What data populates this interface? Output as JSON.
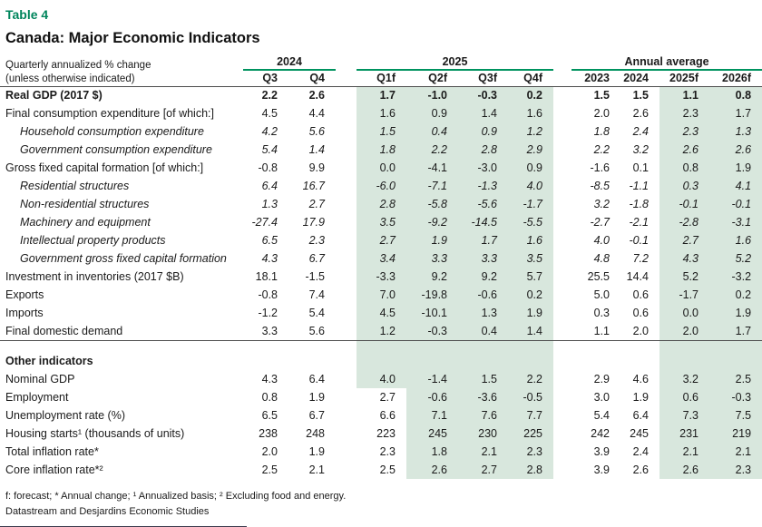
{
  "table_label": "Table 4",
  "title": "Canada: Major Economic Indicators",
  "col_header": {
    "left_line1": "Quarterly annualized % change",
    "left_line2": "(unless otherwise indicated)",
    "groups": [
      {
        "label": "2024",
        "columns": [
          "Q3",
          "Q4"
        ]
      },
      {
        "label": "2025",
        "columns": [
          "Q1f",
          "Q2f",
          "Q3f",
          "Q4f"
        ]
      },
      {
        "label": "Annual average",
        "columns": [
          "2023",
          "2024",
          "2025f",
          "2026f"
        ]
      }
    ]
  },
  "rows": [
    {
      "label": "Real GDP (2017 $)",
      "style": "bold",
      "values": [
        "2.2",
        "2.6",
        "1.7",
        "-1.0",
        "-0.3",
        "0.2",
        "1.5",
        "1.5",
        "1.1",
        "0.8"
      ]
    },
    {
      "label": "Final consumption expenditure [of which:]",
      "style": "normal",
      "values": [
        "4.5",
        "4.4",
        "1.6",
        "0.9",
        "1.4",
        "1.6",
        "2.0",
        "2.6",
        "2.3",
        "1.7"
      ]
    },
    {
      "label": "Household consumption expenditure",
      "style": "sub",
      "values": [
        "4.2",
        "5.6",
        "1.5",
        "0.4",
        "0.9",
        "1.2",
        "1.8",
        "2.4",
        "2.3",
        "1.3"
      ]
    },
    {
      "label": "Government consumption expenditure",
      "style": "sub",
      "values": [
        "5.4",
        "1.4",
        "1.8",
        "2.2",
        "2.8",
        "2.9",
        "2.2",
        "3.2",
        "2.6",
        "2.6"
      ]
    },
    {
      "label": "Gross fixed capital formation [of which:]",
      "style": "normal",
      "values": [
        "-0.8",
        "9.9",
        "0.0",
        "-4.1",
        "-3.0",
        "0.9",
        "-1.6",
        "0.1",
        "0.8",
        "1.9"
      ]
    },
    {
      "label": "Residential structures",
      "style": "sub",
      "values": [
        "6.4",
        "16.7",
        "-6.0",
        "-7.1",
        "-1.3",
        "4.0",
        "-8.5",
        "-1.1",
        "0.3",
        "4.1"
      ]
    },
    {
      "label": "Non-residential structures",
      "style": "sub",
      "values": [
        "1.3",
        "2.7",
        "2.8",
        "-5.8",
        "-5.6",
        "-1.7",
        "3.2",
        "-1.8",
        "-0.1",
        "-0.1"
      ]
    },
    {
      "label": "Machinery and equipment",
      "style": "sub",
      "values": [
        "-27.4",
        "17.9",
        "3.5",
        "-9.2",
        "-14.5",
        "-5.5",
        "-2.7",
        "-2.1",
        "-2.8",
        "-3.1"
      ]
    },
    {
      "label": "Intellectual property products",
      "style": "sub",
      "values": [
        "6.5",
        "2.3",
        "2.7",
        "1.9",
        "1.7",
        "1.6",
        "4.0",
        "-0.1",
        "2.7",
        "1.6"
      ]
    },
    {
      "label": "Government gross fixed capital formation",
      "style": "sub",
      "values": [
        "4.3",
        "6.7",
        "3.4",
        "3.3",
        "3.3",
        "3.5",
        "4.8",
        "7.2",
        "4.3",
        "5.2"
      ]
    },
    {
      "label": "Investment in inventories (2017 $B)",
      "style": "normal",
      "values": [
        "18.1",
        "-1.5",
        "-3.3",
        "9.2",
        "9.2",
        "5.7",
        "25.5",
        "14.4",
        "5.2",
        "-3.2"
      ]
    },
    {
      "label": "Exports",
      "style": "normal",
      "values": [
        "-0.8",
        "7.4",
        "7.0",
        "-19.8",
        "-0.6",
        "0.2",
        "5.0",
        "0.6",
        "-1.7",
        "0.2"
      ]
    },
    {
      "label": "Imports",
      "style": "normal",
      "values": [
        "-1.2",
        "5.4",
        "4.5",
        "-10.1",
        "1.3",
        "1.9",
        "0.3",
        "0.6",
        "0.0",
        "1.9"
      ]
    },
    {
      "label": "Final domestic demand",
      "style": "normal",
      "rule_below": true,
      "values": [
        "3.3",
        "5.6",
        "1.2",
        "-0.3",
        "0.4",
        "1.4",
        "1.1",
        "2.0",
        "2.0",
        "1.7"
      ]
    },
    {
      "blank": true
    },
    {
      "label": "Other indicators",
      "style": "section",
      "values": null
    },
    {
      "label": "Nominal GDP",
      "style": "normal",
      "values": [
        "4.3",
        "6.4",
        "4.0",
        "-1.4",
        "1.5",
        "2.2",
        "2.9",
        "4.6",
        "3.2",
        "2.5"
      ]
    },
    {
      "label": "Employment",
      "style": "normal",
      "q1_actual": true,
      "values": [
        "0.8",
        "1.9",
        "2.7",
        "-0.6",
        "-3.6",
        "-0.5",
        "3.0",
        "1.9",
        "0.6",
        "-0.3"
      ]
    },
    {
      "label": "Unemployment rate (%)",
      "style": "normal",
      "q1_actual": true,
      "values": [
        "6.5",
        "6.7",
        "6.6",
        "7.1",
        "7.6",
        "7.7",
        "5.4",
        "6.4",
        "7.3",
        "7.5"
      ]
    },
    {
      "label": "Housing starts¹ (thousands of units)",
      "style": "normal",
      "q1_actual": true,
      "values": [
        "238",
        "248",
        "223",
        "245",
        "230",
        "225",
        "242",
        "245",
        "231",
        "219"
      ]
    },
    {
      "label": "Total inflation rate*",
      "style": "normal",
      "q1_actual": true,
      "values": [
        "2.0",
        "1.9",
        "2.3",
        "1.8",
        "2.1",
        "2.3",
        "3.9",
        "2.4",
        "2.1",
        "2.1"
      ]
    },
    {
      "label": "Core inflation rate*²",
      "style": "normal",
      "q1_actual": true,
      "values": [
        "2.5",
        "2.1",
        "2.5",
        "2.6",
        "2.7",
        "2.8",
        "3.9",
        "2.6",
        "2.6",
        "2.3"
      ]
    }
  ],
  "footnote": "f: forecast; * Annual change; ¹ Annualized basis; ² Excluding food and energy.",
  "source": "Datastream and Desjardins Economic Studies",
  "colors": {
    "title_green": "#00855c",
    "header_rule_green": "#00935f",
    "forecast_shade": "#d8e7dd",
    "dark_rule": "#4d4d4d",
    "text": "#1a1a1a"
  }
}
